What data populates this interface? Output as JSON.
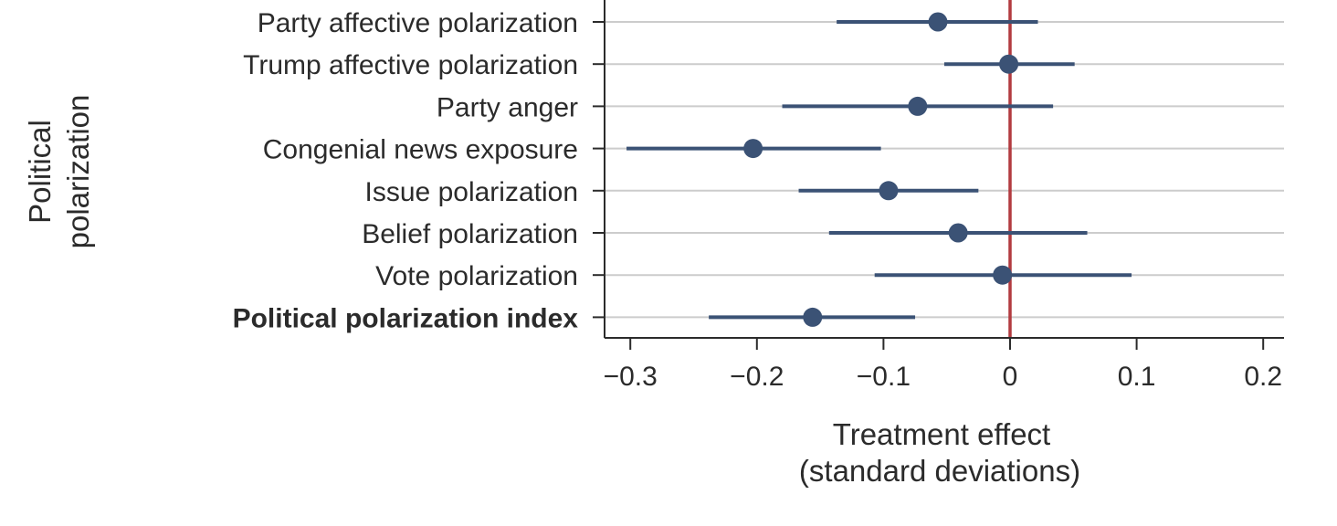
{
  "chart_data": {
    "type": "scatter",
    "subtype": "coefficient-plot",
    "group_label": [
      "Political",
      "polarization"
    ],
    "xlabel": [
      "Treatment effect",
      "(standard deviations)"
    ],
    "ylabel": "",
    "xlim": [
      -0.32,
      0.22
    ],
    "xticks": [
      -0.3,
      -0.2,
      -0.1,
      0,
      0.1,
      0.2
    ],
    "xtick_labels": [
      "−0.3",
      "−0.2",
      "−0.1",
      "0",
      "0.1",
      "0.2"
    ],
    "reference_line": {
      "x": 0,
      "color": "#b23a3f"
    },
    "grid": "horizontal",
    "colors": {
      "point": "#3b5275",
      "ci": "#3b5275",
      "grid": "#cccccc",
      "axis": "#2b2b2b",
      "reference": "#b23a3f"
    },
    "rows": [
      {
        "label": "Party affective polarization",
        "estimate": -0.057,
        "ci_low": -0.137,
        "ci_high": 0.022,
        "bold": false
      },
      {
        "label": "Trump affective polarization",
        "estimate": -0.001,
        "ci_low": -0.052,
        "ci_high": 0.051,
        "bold": false
      },
      {
        "label": "Party anger",
        "estimate": -0.073,
        "ci_low": -0.18,
        "ci_high": 0.034,
        "bold": false
      },
      {
        "label": "Congenial news exposure",
        "estimate": -0.203,
        "ci_low": -0.303,
        "ci_high": -0.102,
        "bold": false
      },
      {
        "label": "Issue polarization",
        "estimate": -0.096,
        "ci_low": -0.167,
        "ci_high": -0.025,
        "bold": false
      },
      {
        "label": "Belief polarization",
        "estimate": -0.041,
        "ci_low": -0.143,
        "ci_high": 0.061,
        "bold": false
      },
      {
        "label": "Vote polarization",
        "estimate": -0.006,
        "ci_low": -0.107,
        "ci_high": 0.096,
        "bold": false
      },
      {
        "label": "Political polarization index",
        "estimate": -0.156,
        "ci_low": -0.238,
        "ci_high": -0.075,
        "bold": true
      }
    ]
  }
}
